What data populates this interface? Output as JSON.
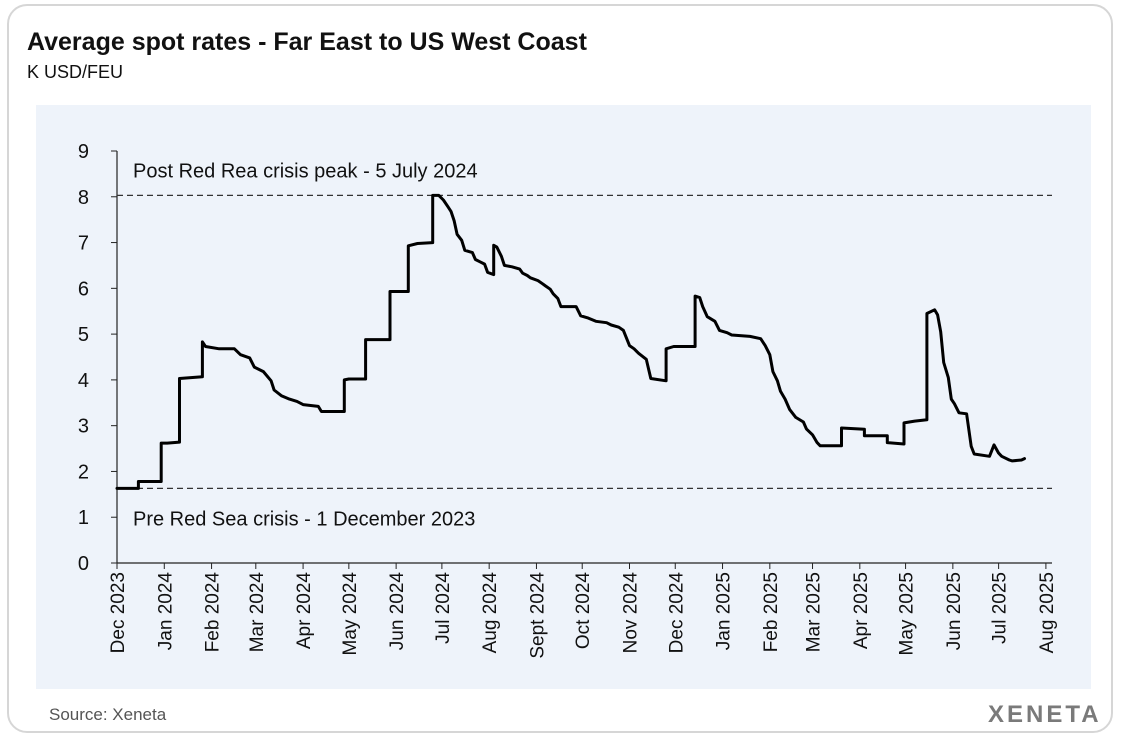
{
  "title": "Average spot rates - Far East to US West Coast",
  "subtitle": "K USD/FEU",
  "source": "Source: Xeneta",
  "logo": "XENETA",
  "colors": {
    "line": "#000000",
    "plot_background": "#eef3fa",
    "reference_line": "#333333"
  },
  "chart_data": {
    "type": "line",
    "title": "Average spot rates - Far East to US West Coast",
    "ylabel": "K USD/FEU",
    "xlabel": "",
    "ylim": [
      0,
      9
    ],
    "xlim": [
      "2023-12-01",
      "2025-08-05"
    ],
    "yticks": [
      0,
      1,
      2,
      3,
      4,
      5,
      6,
      7,
      8,
      9
    ],
    "xticks": [
      {
        "label": "Dec 2023",
        "date": "2023-12-01"
      },
      {
        "label": "Jan 2024",
        "date": "2024-01-01"
      },
      {
        "label": "Feb 2024",
        "date": "2024-02-01"
      },
      {
        "label": "Mar 2024",
        "date": "2024-03-01"
      },
      {
        "label": "Apr 2024",
        "date": "2024-04-01"
      },
      {
        "label": "May 2024",
        "date": "2024-05-01"
      },
      {
        "label": "Jun 2024",
        "date": "2024-06-01"
      },
      {
        "label": "Jul 2024",
        "date": "2024-07-01"
      },
      {
        "label": "Aug 2024",
        "date": "2024-08-01"
      },
      {
        "label": "Sept 2024",
        "date": "2024-09-01"
      },
      {
        "label": "Oct 2024",
        "date": "2024-10-01"
      },
      {
        "label": "Nov 2024",
        "date": "2024-11-01"
      },
      {
        "label": "Dec 2024",
        "date": "2024-12-01"
      },
      {
        "label": "Jan 2025",
        "date": "2025-01-01"
      },
      {
        "label": "Feb 2025",
        "date": "2025-02-01"
      },
      {
        "label": "Mar 2025",
        "date": "2025-03-01"
      },
      {
        "label": "Apr 2025",
        "date": "2025-04-01"
      },
      {
        "label": "May 2025",
        "date": "2025-05-01"
      },
      {
        "label": "Jun 2025",
        "date": "2025-06-01"
      },
      {
        "label": "Jul 2025",
        "date": "2025-07-01"
      },
      {
        "label": "Aug 2025",
        "date": "2025-08-01"
      }
    ],
    "grid": false,
    "reference_lines": [
      {
        "y": 8.03,
        "label": "Post Red Rea crisis peak - 5 July 2024",
        "label_position": "above"
      },
      {
        "y": 1.63,
        "label": "Pre Red Sea crisis - 1 December 2023",
        "label_position": "below"
      }
    ],
    "series": [
      {
        "points": [
          [
            "2023-12-01",
            1.63
          ],
          [
            "2023-12-15",
            1.63
          ],
          [
            "2023-12-15",
            1.78
          ],
          [
            "2023-12-30",
            1.78
          ],
          [
            "2023-12-30",
            2.62
          ],
          [
            "2024-01-03",
            2.62
          ],
          [
            "2024-01-11",
            2.64
          ],
          [
            "2024-01-11",
            4.03
          ],
          [
            "2024-01-26",
            4.07
          ],
          [
            "2024-01-26",
            4.83
          ],
          [
            "2024-01-28",
            4.73
          ],
          [
            "2024-02-06",
            4.68
          ],
          [
            "2024-02-16",
            4.68
          ],
          [
            "2024-02-20",
            4.55
          ],
          [
            "2024-02-26",
            4.48
          ],
          [
            "2024-02-29",
            4.28
          ],
          [
            "2024-03-06",
            4.18
          ],
          [
            "2024-03-11",
            3.98
          ],
          [
            "2024-03-13",
            3.78
          ],
          [
            "2024-03-18",
            3.65
          ],
          [
            "2024-03-23",
            3.58
          ],
          [
            "2024-03-28",
            3.53
          ],
          [
            "2024-04-01",
            3.46
          ],
          [
            "2024-04-11",
            3.42
          ],
          [
            "2024-04-13",
            3.31
          ],
          [
            "2024-04-28",
            3.31
          ],
          [
            "2024-04-28",
            4.0
          ],
          [
            "2024-05-01",
            4.02
          ],
          [
            "2024-05-12",
            4.02
          ],
          [
            "2024-05-12",
            4.88
          ],
          [
            "2024-05-28",
            4.88
          ],
          [
            "2024-05-28",
            5.93
          ],
          [
            "2024-06-09",
            5.93
          ],
          [
            "2024-06-09",
            6.93
          ],
          [
            "2024-06-15",
            6.98
          ],
          [
            "2024-06-25",
            7.0
          ],
          [
            "2024-06-25",
            8.03
          ],
          [
            "2024-06-29",
            8.03
          ],
          [
            "2024-07-02",
            7.93
          ],
          [
            "2024-07-05",
            7.78
          ],
          [
            "2024-07-07",
            7.68
          ],
          [
            "2024-07-09",
            7.48
          ],
          [
            "2024-07-11",
            7.18
          ],
          [
            "2024-07-14",
            7.05
          ],
          [
            "2024-07-16",
            6.83
          ],
          [
            "2024-07-21",
            6.78
          ],
          [
            "2024-07-23",
            6.63
          ],
          [
            "2024-07-26",
            6.58
          ],
          [
            "2024-07-29",
            6.53
          ],
          [
            "2024-07-31",
            6.35
          ],
          [
            "2024-08-04",
            6.3
          ],
          [
            "2024-08-04",
            6.94
          ],
          [
            "2024-08-06",
            6.9
          ],
          [
            "2024-08-09",
            6.7
          ],
          [
            "2024-08-11",
            6.5
          ],
          [
            "2024-08-16",
            6.47
          ],
          [
            "2024-08-21",
            6.42
          ],
          [
            "2024-08-23",
            6.33
          ],
          [
            "2024-08-26",
            6.28
          ],
          [
            "2024-08-28",
            6.23
          ],
          [
            "2024-09-02",
            6.17
          ],
          [
            "2024-09-05",
            6.1
          ],
          [
            "2024-09-07",
            6.05
          ],
          [
            "2024-09-10",
            5.98
          ],
          [
            "2024-09-12",
            5.88
          ],
          [
            "2024-09-15",
            5.78
          ],
          [
            "2024-09-17",
            5.6
          ],
          [
            "2024-09-27",
            5.6
          ],
          [
            "2024-09-30",
            5.4
          ],
          [
            "2024-10-05",
            5.35
          ],
          [
            "2024-10-10",
            5.28
          ],
          [
            "2024-10-17",
            5.25
          ],
          [
            "2024-10-20",
            5.2
          ],
          [
            "2024-10-25",
            5.15
          ],
          [
            "2024-10-28",
            5.08
          ],
          [
            "2024-11-01",
            4.75
          ],
          [
            "2024-11-04",
            4.68
          ],
          [
            "2024-11-07",
            4.58
          ],
          [
            "2024-11-12",
            4.45
          ],
          [
            "2024-11-15",
            4.03
          ],
          [
            "2024-11-25",
            3.98
          ],
          [
            "2024-11-25",
            4.68
          ],
          [
            "2024-11-30",
            4.73
          ],
          [
            "2024-12-14",
            4.73
          ],
          [
            "2024-12-14",
            5.83
          ],
          [
            "2024-12-17",
            5.8
          ],
          [
            "2024-12-19",
            5.6
          ],
          [
            "2024-12-22",
            5.38
          ],
          [
            "2024-12-27",
            5.28
          ],
          [
            "2024-12-30",
            5.08
          ],
          [
            "2025-01-04",
            5.03
          ],
          [
            "2025-01-07",
            4.98
          ],
          [
            "2025-01-19",
            4.95
          ],
          [
            "2025-01-26",
            4.9
          ],
          [
            "2025-01-29",
            4.75
          ],
          [
            "2025-02-01",
            4.55
          ],
          [
            "2025-02-03",
            4.18
          ],
          [
            "2025-02-06",
            3.98
          ],
          [
            "2025-02-08",
            3.75
          ],
          [
            "2025-02-11",
            3.58
          ],
          [
            "2025-02-14",
            3.35
          ],
          [
            "2025-02-18",
            3.18
          ],
          [
            "2025-02-23",
            3.08
          ],
          [
            "2025-02-25",
            2.93
          ],
          [
            "2025-03-01",
            2.8
          ],
          [
            "2025-03-04",
            2.63
          ],
          [
            "2025-03-06",
            2.56
          ],
          [
            "2025-03-20",
            2.56
          ],
          [
            "2025-03-20",
            2.95
          ],
          [
            "2025-04-04",
            2.92
          ],
          [
            "2025-04-04",
            2.78
          ],
          [
            "2025-04-19",
            2.78
          ],
          [
            "2025-04-19",
            2.63
          ],
          [
            "2025-04-30",
            2.6
          ],
          [
            "2025-04-30",
            3.06
          ],
          [
            "2025-05-07",
            3.1
          ],
          [
            "2025-05-15",
            3.13
          ],
          [
            "2025-05-15",
            5.45
          ],
          [
            "2025-05-20",
            5.53
          ],
          [
            "2025-05-22",
            5.42
          ],
          [
            "2025-05-24",
            5.05
          ],
          [
            "2025-05-26",
            4.38
          ],
          [
            "2025-05-29",
            4.05
          ],
          [
            "2025-05-31",
            3.58
          ],
          [
            "2025-06-02",
            3.48
          ],
          [
            "2025-06-05",
            3.28
          ],
          [
            "2025-06-10",
            3.26
          ],
          [
            "2025-06-13",
            2.55
          ],
          [
            "2025-06-15",
            2.38
          ],
          [
            "2025-06-25",
            2.33
          ],
          [
            "2025-06-28",
            2.58
          ],
          [
            "2025-07-01",
            2.4
          ],
          [
            "2025-07-03",
            2.33
          ],
          [
            "2025-07-08",
            2.25
          ],
          [
            "2025-07-10",
            2.23
          ],
          [
            "2025-07-16",
            2.25
          ],
          [
            "2025-07-18",
            2.28
          ]
        ]
      }
    ]
  }
}
